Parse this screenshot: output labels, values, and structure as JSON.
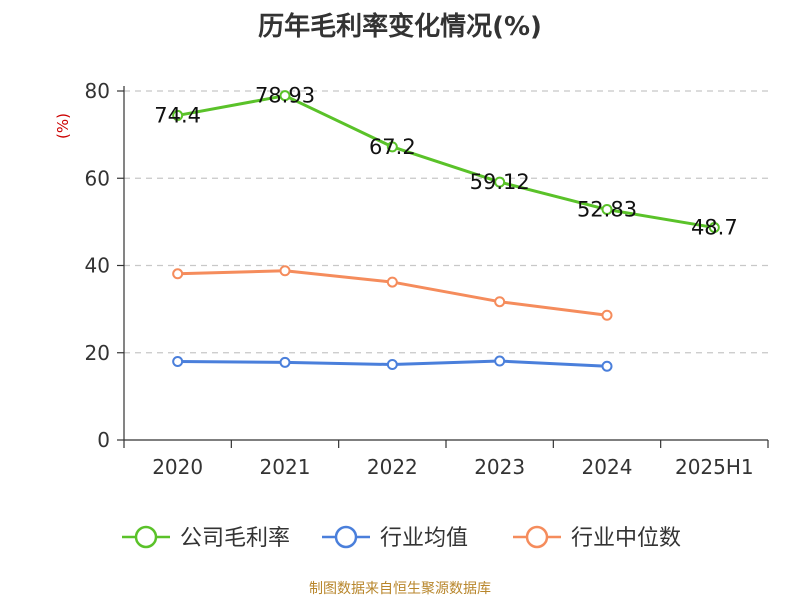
{
  "chart_data": {
    "type": "line",
    "title": "历年毛利率变化情况(%)",
    "ylabel": "(%)",
    "xlabel": "",
    "categories": [
      "2020",
      "2021",
      "2022",
      "2023",
      "2024",
      "2025H1"
    ],
    "ylim": [
      0,
      80
    ],
    "yticks": [
      0,
      20,
      40,
      60,
      80
    ],
    "grid": true,
    "legend_position": "bottom",
    "series": [
      {
        "name": "公司毛利率",
        "color": "#5ac229",
        "values": [
          74.4,
          78.93,
          67.2,
          59.12,
          52.83,
          48.7
        ],
        "labels": [
          "74.4",
          "78.93",
          "67.2",
          "59.12",
          "52.83",
          "48.7"
        ]
      },
      {
        "name": "行业均值",
        "color": "#4a7fdb",
        "values": [
          18.0,
          17.8,
          17.3,
          18.1,
          16.9,
          null
        ],
        "labels": []
      },
      {
        "name": "行业中位数",
        "color": "#f58c5c",
        "values": [
          38.1,
          38.8,
          36.2,
          31.7,
          28.6,
          null
        ],
        "labels": []
      }
    ]
  },
  "source": "制图数据来自恒生聚源数据库",
  "colors": {
    "ylabel": "#cc0000",
    "grid": "#c8c8c8",
    "axis": "#333333",
    "source": "#b8862b"
  }
}
